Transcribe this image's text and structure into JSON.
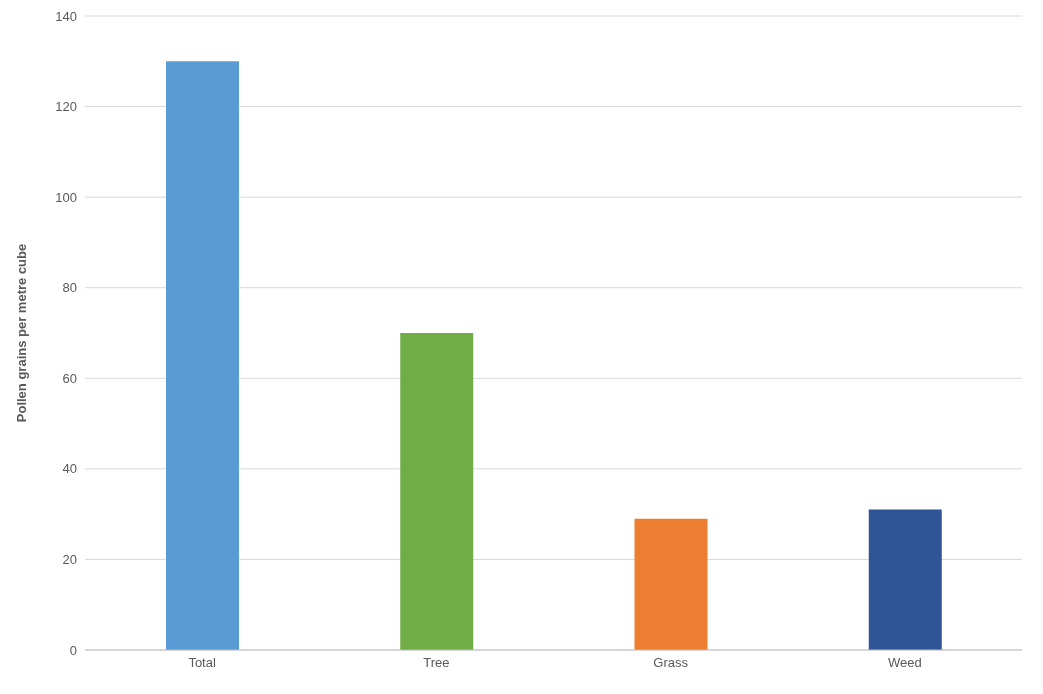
{
  "chart_data": {
    "type": "bar",
    "ylabel": "Pollen grains per metre cube",
    "categories": [
      "Total",
      "Tree",
      "Grass",
      "Weed"
    ],
    "values": [
      130,
      70,
      29,
      31
    ],
    "colors": [
      "#5b9bd5",
      "#70ad47",
      "#ed7d31",
      "#2f5597"
    ],
    "ylim": [
      0,
      140
    ],
    "yticks": [
      0,
      20,
      40,
      60,
      80,
      100,
      120,
      140
    ],
    "grid": "y",
    "legend": false
  }
}
